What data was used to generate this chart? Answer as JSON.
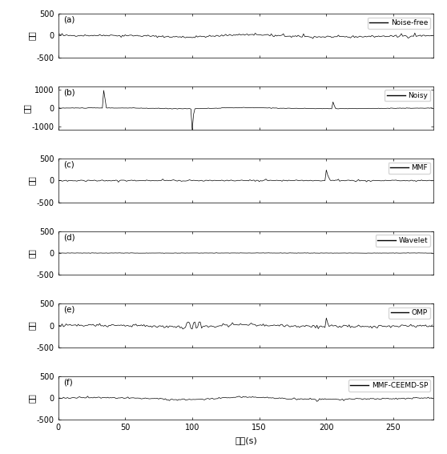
{
  "n_points": 280,
  "xlim": [
    0,
    280
  ],
  "xticks": [
    0,
    50,
    100,
    150,
    200,
    250
  ],
  "xlabel": "时间(s)",
  "ylabel": "幅度",
  "panels": [
    {
      "label": "(a)",
      "legend": "Noise-free",
      "ylim": [
        -500,
        500
      ],
      "yticks": [
        -500,
        0,
        500
      ],
      "signal_type": "noise_free"
    },
    {
      "label": "(b)",
      "legend": "Noisy",
      "ylim": [
        -1200,
        1200
      ],
      "yticks": [
        -1000,
        0,
        1000
      ],
      "signal_type": "noisy"
    },
    {
      "label": "(c)",
      "legend": "MMF",
      "ylim": [
        -500,
        500
      ],
      "yticks": [
        -500,
        0,
        500
      ],
      "signal_type": "mmf"
    },
    {
      "label": "(d)",
      "legend": "Wavelet",
      "ylim": [
        -500,
        500
      ],
      "yticks": [
        -500,
        0,
        500
      ],
      "signal_type": "wavelet"
    },
    {
      "label": "(e)",
      "legend": "OMP",
      "ylim": [
        -500,
        500
      ],
      "yticks": [
        -500,
        0,
        500
      ],
      "signal_type": "omp"
    },
    {
      "label": "(f)",
      "legend": "MMF-CEEMD-SP",
      "ylim": [
        -500,
        500
      ],
      "yticks": [
        -500,
        0,
        500
      ],
      "signal_type": "mmf_ceemd_sp"
    }
  ],
  "line_color": "black",
  "line_width": 0.5,
  "fig_width": 5.58,
  "fig_height": 5.67,
  "dpi": 100
}
